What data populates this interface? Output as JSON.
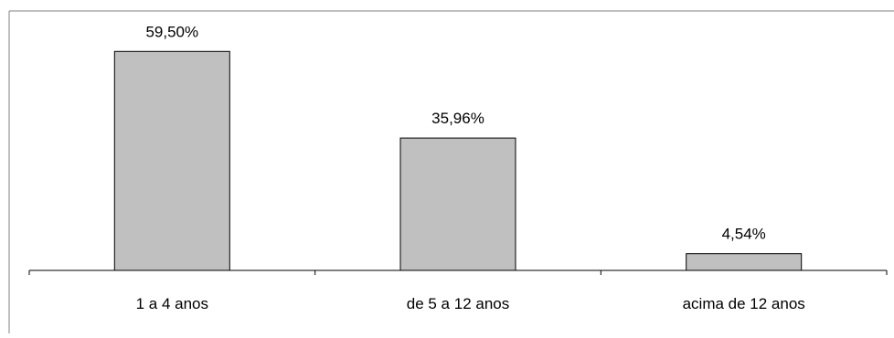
{
  "chart_data": {
    "type": "bar",
    "title": "",
    "xlabel": "",
    "ylabel": "",
    "categories": [
      "1 a 4 anos",
      "de 5 a 12 anos",
      "acima de 12 anos"
    ],
    "values": [
      59.5,
      35.96,
      4.54
    ],
    "value_labels": [
      "59,50%",
      "35,96%",
      "4,54%"
    ],
    "unit": "%",
    "ylim": [
      0,
      70
    ],
    "grid": false,
    "legend": "none",
    "colors": {
      "bar_fill": "#c0c0c0",
      "bar_stroke": "#000000",
      "axis": "#000000",
      "frame": "#808080"
    }
  }
}
